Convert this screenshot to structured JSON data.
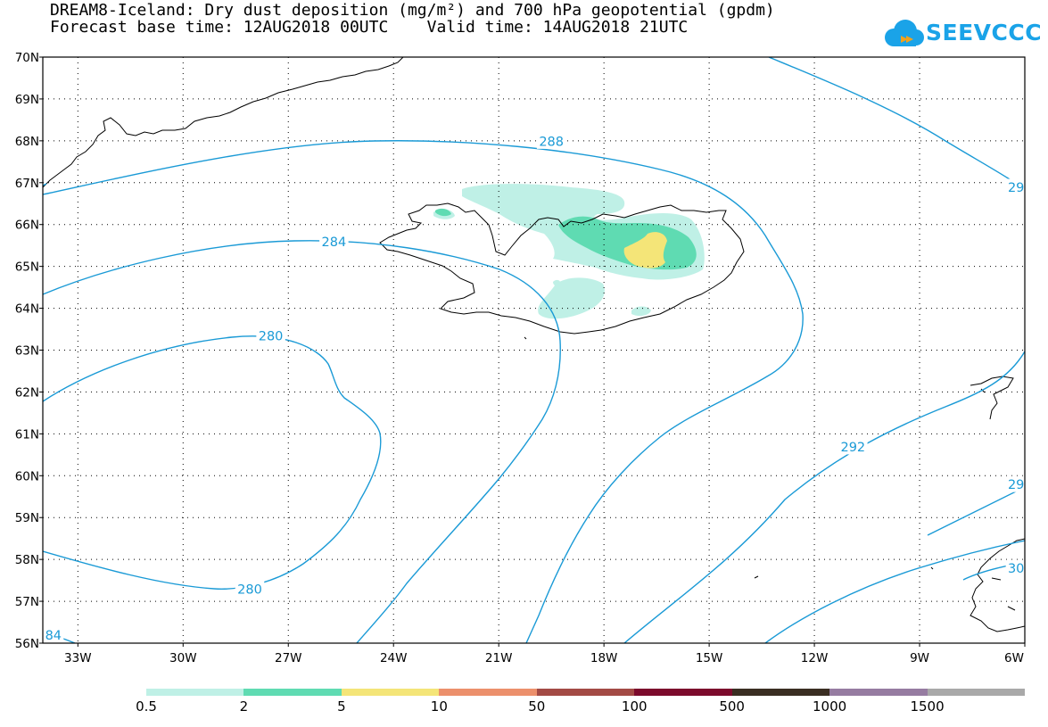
{
  "title_line1": "DREAM8-Iceland: Dry dust deposition (mg/m²) and 700 hPa geopotential (gpdm)",
  "title_line2": "Forecast base time: 12AUG2018 00UTC    Valid time: 14AUG2018 21UTC",
  "logo_text": "SEEVCCC",
  "map": {
    "lon_range": [
      -34,
      -6
    ],
    "lat_range": [
      56,
      70
    ],
    "lat_ticks": [
      {
        "v": 70,
        "label": "70N"
      },
      {
        "v": 69,
        "label": "69N"
      },
      {
        "v": 68,
        "label": "68N"
      },
      {
        "v": 67,
        "label": "67N"
      },
      {
        "v": 66,
        "label": "66N"
      },
      {
        "v": 65,
        "label": "65N"
      },
      {
        "v": 64,
        "label": "64N"
      },
      {
        "v": 63,
        "label": "63N"
      },
      {
        "v": 62,
        "label": "62N"
      },
      {
        "v": 61,
        "label": "61N"
      },
      {
        "v": 60,
        "label": "60N"
      },
      {
        "v": 59,
        "label": "59N"
      },
      {
        "v": 58,
        "label": "58N"
      },
      {
        "v": 57,
        "label": "57N"
      },
      {
        "v": 56,
        "label": "56N"
      }
    ],
    "lon_ticks": [
      {
        "v": -33,
        "label": "33W"
      },
      {
        "v": -30,
        "label": "30W"
      },
      {
        "v": -27,
        "label": "27W"
      },
      {
        "v": -24,
        "label": "24W"
      },
      {
        "v": -21,
        "label": "21W"
      },
      {
        "v": -18,
        "label": "18W"
      },
      {
        "v": -15,
        "label": "15W"
      },
      {
        "v": -12,
        "label": "12W"
      },
      {
        "v": -9,
        "label": "9W"
      },
      {
        "v": -6,
        "label": "6W"
      }
    ],
    "contour_labels": [
      {
        "text": "288",
        "lon": -19.5,
        "lat": 68.0
      },
      {
        "text": "284",
        "lon": -25.7,
        "lat": 65.6
      },
      {
        "text": "280",
        "lon": -27.5,
        "lat": 63.35
      },
      {
        "text": "280",
        "lon": -28.1,
        "lat": 57.3
      },
      {
        "text": "292",
        "lon": -10.9,
        "lat": 60.7
      },
      {
        "text": "29",
        "lon": -6.25,
        "lat": 66.9
      },
      {
        "text": "29",
        "lon": -6.25,
        "lat": 59.8
      },
      {
        "text": "30",
        "lon": -6.25,
        "lat": 57.8
      },
      {
        "text": "84",
        "lon": -33.7,
        "lat": 56.2
      }
    ]
  },
  "legend": {
    "colors": [
      "#bff0e6",
      "#5fdbb2",
      "#f4e578",
      "#ec906c",
      "#a34a45",
      "#7c0a2c",
      "#3a2e22",
      "#967ca1",
      "#a9a9a9"
    ],
    "labels": [
      "0.5",
      "2",
      "5",
      "10",
      "50",
      "100",
      "500",
      "1000",
      "1500"
    ]
  }
}
